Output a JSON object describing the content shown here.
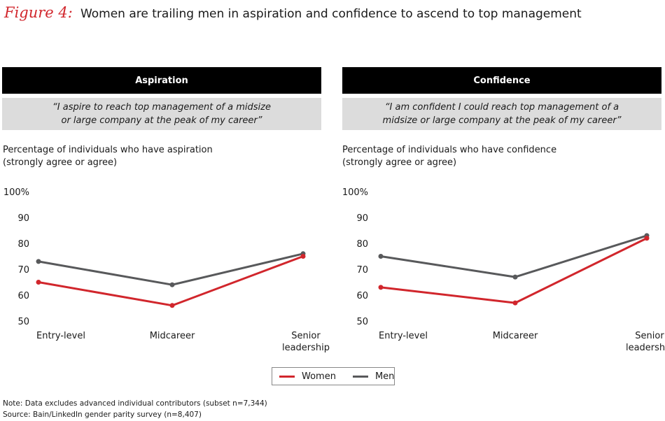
{
  "figure": {
    "label": "Figure 4:",
    "title": "Women are trailing men in aspiration and confidence to ascend to top management"
  },
  "colors": {
    "women": "#d1262c",
    "men": "#58595b"
  },
  "panels": [
    {
      "header": "Aspiration",
      "quote_line1": "“I aspire to reach top management of a midsize",
      "quote_line2": "or large company at the peak of my career”",
      "ylabel_line1": "Percentage of individuals who have aspiration",
      "ylabel_line2": "(strongly agree or agree)"
    },
    {
      "header": "Confidence",
      "quote_line1": "“I am confident I could reach top management of a",
      "quote_line2": "midsize or large company at the peak of my career”",
      "ylabel_line1": "Percentage of individuals who have confidence",
      "ylabel_line2": "(strongly agree or agree)"
    }
  ],
  "chart_data": [
    {
      "type": "line",
      "title": "Aspiration",
      "categories": [
        "Entry-level",
        "Midcareer",
        "Senior leadership"
      ],
      "category_lines": [
        [
          "Entry-level"
        ],
        [
          "Midcareer"
        ],
        [
          "Senior",
          "leadership"
        ]
      ],
      "yticks": [
        "100%",
        "90",
        "80",
        "70",
        "60",
        "50"
      ],
      "ylim": [
        50,
        100
      ],
      "grid": false,
      "series": [
        {
          "name": "Women",
          "values": [
            65,
            56,
            75
          ]
        },
        {
          "name": "Men",
          "values": [
            73,
            64,
            76
          ]
        }
      ]
    },
    {
      "type": "line",
      "title": "Confidence",
      "categories": [
        "Entry-level",
        "Midcareer",
        "Senior leadership"
      ],
      "category_lines": [
        [
          "Entry-level"
        ],
        [
          "Midcareer"
        ],
        [
          "Senior",
          "leadership"
        ]
      ],
      "yticks": [
        "100%",
        "90",
        "80",
        "70",
        "60",
        "50"
      ],
      "ylim": [
        50,
        100
      ],
      "grid": false,
      "series": [
        {
          "name": "Women",
          "values": [
            63,
            57,
            82
          ]
        },
        {
          "name": "Men",
          "values": [
            75,
            67,
            83
          ]
        }
      ]
    }
  ],
  "legend": {
    "women": "Women",
    "men": "Men",
    "position": "bottom-center"
  },
  "notes": {
    "note": "Note: Data excludes advanced individual contributors (subset n=7,344)",
    "source": "Source: Bain/LinkedIn gender parity survey (n=8,407)"
  }
}
